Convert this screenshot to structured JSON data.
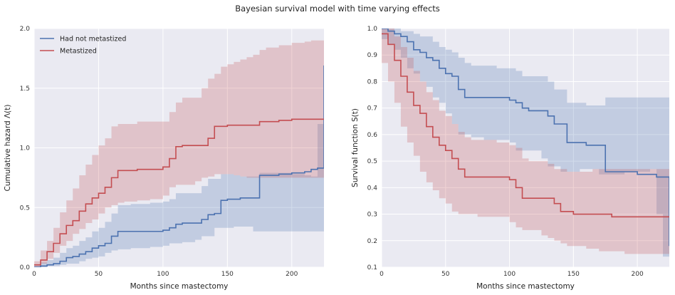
{
  "figure": {
    "suptitle": "Bayesian survival model with time varying effects"
  },
  "colors": {
    "blue": "#4c72b0",
    "red": "#c44e52",
    "axes_bg": "#eaeaf2",
    "grid": "#ffffff"
  },
  "chart_data": [
    {
      "type": "line",
      "subtype": "step",
      "xlabel": "Months since mastectomy",
      "ylabel": "Cumulative hazard Λ(t)",
      "xlim": [
        0,
        225
      ],
      "ylim": [
        0,
        2.0
      ],
      "xticks": [
        0,
        50,
        100,
        150,
        200
      ],
      "yticks": [
        0.0,
        0.5,
        1.0,
        1.5,
        2.0
      ],
      "xtick_labels": [
        "0",
        "50",
        "100",
        "150",
        "200"
      ],
      "ytick_labels": [
        "0.0",
        "0.5",
        "1.0",
        "1.5",
        "2.0"
      ],
      "grid": true,
      "legend": "top-left",
      "series": [
        {
          "name": "Had not metastized",
          "color": "#4c72b0",
          "x": [
            0,
            5,
            10,
            15,
            20,
            25,
            30,
            35,
            40,
            45,
            50,
            55,
            60,
            65,
            70,
            75,
            80,
            90,
            100,
            105,
            110,
            115,
            125,
            130,
            135,
            140,
            145,
            150,
            155,
            160,
            165,
            170,
            175,
            180,
            190,
            200,
            210,
            215,
            220,
            225
          ],
          "y": [
            0.0,
            0.01,
            0.02,
            0.03,
            0.05,
            0.08,
            0.09,
            0.11,
            0.13,
            0.16,
            0.18,
            0.2,
            0.26,
            0.3,
            0.3,
            0.3,
            0.3,
            0.3,
            0.31,
            0.33,
            0.36,
            0.37,
            0.37,
            0.4,
            0.44,
            0.45,
            0.56,
            0.57,
            0.57,
            0.58,
            0.58,
            0.58,
            0.77,
            0.77,
            0.78,
            0.79,
            0.8,
            0.82,
            0.83,
            1.69
          ],
          "lower": [
            0.0,
            0.0,
            0.0,
            0.01,
            0.01,
            0.02,
            0.03,
            0.03,
            0.05,
            0.07,
            0.08,
            0.09,
            0.12,
            0.14,
            0.15,
            0.15,
            0.16,
            0.16,
            0.17,
            0.18,
            0.2,
            0.2,
            0.21,
            0.23,
            0.26,
            0.26,
            0.33,
            0.33,
            0.33,
            0.34,
            0.34,
            0.34,
            0.3,
            0.3,
            0.3,
            0.3,
            0.3,
            0.3,
            0.3,
            0.3
          ],
          "upper": [
            0.02,
            0.04,
            0.06,
            0.08,
            0.12,
            0.16,
            0.18,
            0.22,
            0.25,
            0.3,
            0.33,
            0.38,
            0.45,
            0.52,
            0.52,
            0.53,
            0.53,
            0.54,
            0.55,
            0.57,
            0.62,
            0.62,
            0.62,
            0.68,
            0.74,
            0.74,
            0.78,
            0.78,
            0.77,
            0.76,
            0.76,
            0.76,
            0.79,
            0.79,
            0.79,
            0.78,
            0.77,
            0.76,
            1.2,
            2.0
          ]
        },
        {
          "name": "Metastized",
          "color": "#c44e52",
          "x": [
            0,
            5,
            10,
            15,
            20,
            25,
            30,
            35,
            40,
            45,
            50,
            55,
            60,
            65,
            70,
            75,
            80,
            90,
            100,
            105,
            110,
            115,
            125,
            130,
            135,
            140,
            145,
            150,
            155,
            160,
            165,
            170,
            175,
            180,
            190,
            200,
            210,
            215,
            220,
            225
          ],
          "y": [
            0.02,
            0.06,
            0.13,
            0.2,
            0.28,
            0.35,
            0.39,
            0.47,
            0.53,
            0.58,
            0.62,
            0.67,
            0.75,
            0.81,
            0.81,
            0.81,
            0.82,
            0.82,
            0.84,
            0.91,
            1.01,
            1.02,
            1.02,
            1.02,
            1.08,
            1.18,
            1.18,
            1.19,
            1.19,
            1.19,
            1.19,
            1.19,
            1.22,
            1.22,
            1.23,
            1.24,
            1.24,
            1.24,
            1.24,
            1.24
          ],
          "lower": [
            0.0,
            0.0,
            0.03,
            0.07,
            0.12,
            0.18,
            0.22,
            0.28,
            0.32,
            0.37,
            0.4,
            0.45,
            0.5,
            0.52,
            0.54,
            0.55,
            0.55,
            0.56,
            0.57,
            0.6,
            0.67,
            0.69,
            0.69,
            0.72,
            0.75,
            0.76,
            0.78,
            0.78,
            0.78,
            0.77,
            0.76,
            0.75,
            0.75,
            0.75,
            0.75,
            0.75,
            0.75,
            0.75,
            0.75,
            0.75
          ],
          "upper": [
            0.05,
            0.14,
            0.22,
            0.33,
            0.46,
            0.56,
            0.66,
            0.77,
            0.86,
            0.94,
            1.02,
            1.08,
            1.18,
            1.2,
            1.2,
            1.2,
            1.22,
            1.22,
            1.22,
            1.3,
            1.38,
            1.42,
            1.42,
            1.5,
            1.58,
            1.62,
            1.68,
            1.7,
            1.72,
            1.74,
            1.76,
            1.78,
            1.82,
            1.84,
            1.86,
            1.88,
            1.89,
            1.9,
            1.9,
            1.9
          ]
        }
      ]
    },
    {
      "type": "line",
      "subtype": "step",
      "xlabel": "Months since mastectomy",
      "ylabel": "Survival function S(t)",
      "xlim": [
        0,
        225
      ],
      "ylim": [
        0.1,
        1.0
      ],
      "xticks": [
        0,
        50,
        100,
        150,
        200
      ],
      "yticks": [
        0.1,
        0.2,
        0.3,
        0.4,
        0.5,
        0.6,
        0.7,
        0.8,
        0.9,
        1.0
      ],
      "xtick_labels": [
        "0",
        "50",
        "100",
        "150",
        "200"
      ],
      "ytick_labels": [
        "0.1",
        "0.2",
        "0.3",
        "0.4",
        "0.5",
        "0.6",
        "0.7",
        "0.8",
        "0.9",
        "1.0"
      ],
      "grid": true,
      "series": [
        {
          "color": "#4c72b0",
          "x": [
            0,
            5,
            10,
            15,
            20,
            25,
            30,
            35,
            40,
            45,
            50,
            55,
            60,
            65,
            70,
            75,
            80,
            90,
            100,
            105,
            110,
            115,
            125,
            130,
            135,
            140,
            145,
            150,
            155,
            160,
            165,
            170,
            175,
            180,
            190,
            200,
            210,
            215,
            220,
            225
          ],
          "y": [
            1.0,
            0.99,
            0.98,
            0.97,
            0.95,
            0.92,
            0.91,
            0.89,
            0.88,
            0.85,
            0.83,
            0.82,
            0.77,
            0.74,
            0.74,
            0.74,
            0.74,
            0.74,
            0.73,
            0.72,
            0.7,
            0.69,
            0.69,
            0.67,
            0.64,
            0.64,
            0.57,
            0.57,
            0.57,
            0.56,
            0.56,
            0.56,
            0.46,
            0.46,
            0.46,
            0.45,
            0.45,
            0.44,
            0.44,
            0.18
          ],
          "lower": [
            0.98,
            0.96,
            0.94,
            0.92,
            0.89,
            0.85,
            0.83,
            0.8,
            0.78,
            0.74,
            0.72,
            0.68,
            0.64,
            0.6,
            0.6,
            0.59,
            0.59,
            0.58,
            0.58,
            0.57,
            0.54,
            0.54,
            0.54,
            0.51,
            0.48,
            0.48,
            0.46,
            0.46,
            0.46,
            0.47,
            0.47,
            0.47,
            0.45,
            0.45,
            0.45,
            0.46,
            0.46,
            0.47,
            0.3,
            0.14
          ],
          "upper": [
            1.0,
            1.0,
            1.0,
            0.99,
            0.99,
            0.98,
            0.97,
            0.97,
            0.95,
            0.93,
            0.92,
            0.91,
            0.89,
            0.87,
            0.86,
            0.86,
            0.86,
            0.85,
            0.85,
            0.84,
            0.82,
            0.82,
            0.82,
            0.8,
            0.77,
            0.77,
            0.72,
            0.72,
            0.72,
            0.71,
            0.71,
            0.71,
            0.74,
            0.74,
            0.74,
            0.74,
            0.74,
            0.74,
            0.74,
            0.74
          ]
        },
        {
          "color": "#c44e52",
          "x": [
            0,
            5,
            10,
            15,
            20,
            25,
            30,
            35,
            40,
            45,
            50,
            55,
            60,
            65,
            70,
            75,
            80,
            90,
            100,
            105,
            110,
            115,
            125,
            130,
            135,
            140,
            145,
            150,
            155,
            160,
            165,
            170,
            175,
            180,
            190,
            200,
            210,
            215,
            220,
            225
          ],
          "y": [
            0.98,
            0.94,
            0.88,
            0.82,
            0.76,
            0.71,
            0.68,
            0.63,
            0.59,
            0.56,
            0.54,
            0.51,
            0.47,
            0.44,
            0.44,
            0.44,
            0.44,
            0.44,
            0.43,
            0.4,
            0.36,
            0.36,
            0.36,
            0.36,
            0.34,
            0.31,
            0.31,
            0.3,
            0.3,
            0.3,
            0.3,
            0.3,
            0.3,
            0.29,
            0.29,
            0.29,
            0.29,
            0.29,
            0.29,
            0.29
          ],
          "lower": [
            0.95,
            0.87,
            0.8,
            0.72,
            0.63,
            0.57,
            0.52,
            0.46,
            0.42,
            0.39,
            0.36,
            0.34,
            0.31,
            0.3,
            0.3,
            0.3,
            0.29,
            0.29,
            0.29,
            0.27,
            0.25,
            0.24,
            0.24,
            0.22,
            0.21,
            0.2,
            0.19,
            0.18,
            0.18,
            0.18,
            0.17,
            0.17,
            0.16,
            0.16,
            0.16,
            0.15,
            0.15,
            0.15,
            0.15,
            0.15
          ],
          "upper": [
            1.0,
            1.0,
            0.97,
            0.93,
            0.89,
            0.84,
            0.8,
            0.76,
            0.73,
            0.69,
            0.67,
            0.64,
            0.61,
            0.59,
            0.58,
            0.58,
            0.58,
            0.57,
            0.56,
            0.55,
            0.51,
            0.5,
            0.5,
            0.49,
            0.47,
            0.47,
            0.46,
            0.46,
            0.46,
            0.46,
            0.47,
            0.47,
            0.47,
            0.47,
            0.47,
            0.47,
            0.47,
            0.47,
            0.47,
            0.47
          ]
        }
      ]
    }
  ]
}
